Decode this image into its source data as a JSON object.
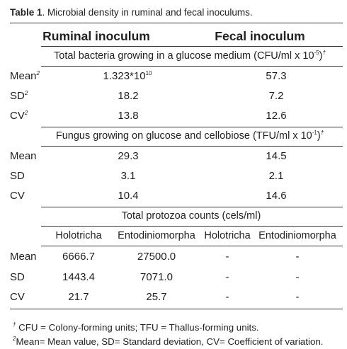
{
  "caption": {
    "label": "Table 1",
    "text": ". Microbial density in ruminal and fecal inoculums."
  },
  "columns": {
    "ruminal": "Ruminal inoculum",
    "fecal": "Fecal inoculum"
  },
  "sections": {
    "bacteria": {
      "title": "Total bacteria growing in a glucose medium (CFU/ml x 10",
      "exponent": "-5",
      "title_end": ")",
      "mark": "†",
      "rows": [
        {
          "label": "Mean",
          "mark": "2",
          "ruminal": "1.323*10",
          "ruminal_exp": "10",
          "fecal": "57.3"
        },
        {
          "label": "SD",
          "mark": "2",
          "ruminal": "18.2",
          "fecal": "7.2"
        },
        {
          "label": "CV",
          "mark": "2",
          "ruminal": "13.8",
          "fecal": "12.6"
        }
      ]
    },
    "fungus": {
      "title": "Fungus growing on glucose and cellobiose (TFU/ml x 10",
      "exponent": "-1",
      "title_end": ")",
      "mark": "†",
      "rows": [
        {
          "label": "Mean",
          "ruminal": "29.3",
          "fecal": "14.5"
        },
        {
          "label": "SD",
          "ruminal": "3.1",
          "fecal": "2.1"
        },
        {
          "label": "CV",
          "ruminal": "10.4",
          "fecal": "14.6"
        }
      ]
    },
    "protozoa": {
      "title": "Total protozoa counts (cels/ml)",
      "subheaders": [
        "Holotricha",
        "Entodiniomorpha",
        "Holotricha",
        "Entodiniomorpha"
      ],
      "rows": [
        {
          "label": "Mean",
          "values": [
            "6666.7",
            "27500.0",
            "-",
            "-"
          ]
        },
        {
          "label": "SD",
          "values": [
            "1443.4",
            "7071.0",
            "-",
            "-"
          ]
        },
        {
          "label": "CV",
          "values": [
            "21.7",
            "25.7",
            "-",
            "-"
          ]
        }
      ]
    }
  },
  "footnotes": {
    "f1_mark": "†",
    "f1": " CFU = Colony-forming units; TFU = Thallus-forming units.",
    "f2_mark": "2",
    "f2": "Mean= Mean value, SD= Standard deviation, CV= Coefficient of variation."
  }
}
